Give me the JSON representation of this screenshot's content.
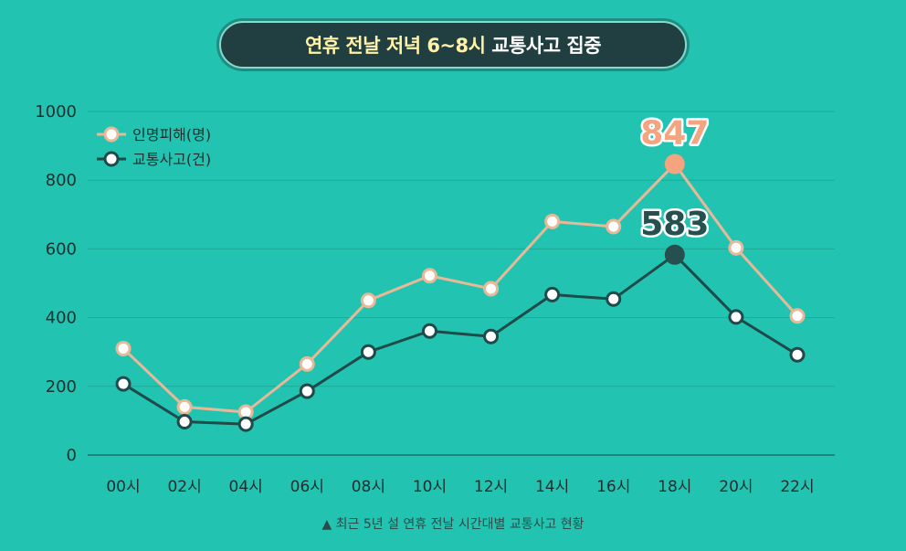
{
  "title": {
    "highlight": "연휴 전날 저녁 6~8시",
    "rest": "교통사고 집중"
  },
  "chart_data": {
    "type": "line",
    "categories": [
      "00시",
      "02시",
      "04시",
      "06시",
      "08시",
      "10시",
      "12시",
      "14시",
      "16시",
      "18시",
      "20시",
      "22시"
    ],
    "series": [
      {
        "name": "인명피해(명)",
        "values": [
          310,
          140,
          125,
          265,
          450,
          522,
          484,
          680,
          665,
          847,
          603,
          405
        ],
        "color": "#e7b998"
      },
      {
        "name": "교통사고(건)",
        "values": [
          207,
          97,
          90,
          186,
          300,
          361,
          345,
          467,
          454,
          583,
          402,
          292
        ],
        "color": "#1f4a4a"
      }
    ],
    "ylim": [
      0,
      1000
    ],
    "yticks": [
      0,
      200,
      400,
      600,
      800,
      1000
    ],
    "highlight_index": 9,
    "callouts": [
      "847",
      "583"
    ],
    "callout_colors": [
      "#f4a47f",
      "#25504f"
    ],
    "grid": true,
    "legend_position": "top-left",
    "footnote": "▲ 최근 5년 설 연휴 전날 시간대별 교통사고 현황"
  }
}
